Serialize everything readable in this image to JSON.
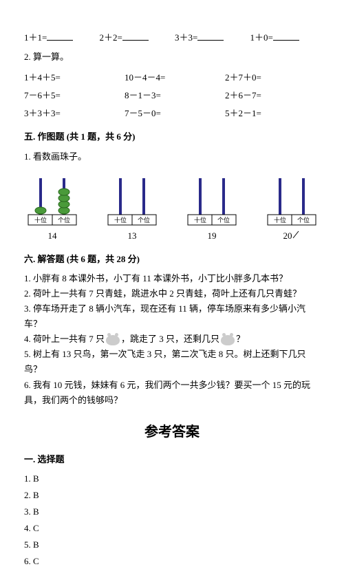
{
  "firstRow": {
    "items": [
      "1＋1=",
      "2＋2=",
      "3＋3=",
      "1＋0="
    ]
  },
  "calcHeader": "2. 算一算。",
  "calcGrid": {
    "rows": [
      [
        "1＋4＋5=",
        "10－4－4=",
        "2＋7＋0="
      ],
      [
        "7－6＋5=",
        "8－1－3=",
        "2＋6－7="
      ],
      [
        "3＋3＋3=",
        "7－5－0=",
        "5＋2－1="
      ]
    ]
  },
  "section5": "五. 作图题 (共 1 题，共 6 分)",
  "s5p1": "1. 看数画珠子。",
  "abaci": [
    {
      "number": "14",
      "tens_beads": 1,
      "ones_beads": 4,
      "tens_color": "#4a9a3a",
      "ones_color": "#4a9a3a",
      "rod_color": "#2a2a8a",
      "label_tens": "十位",
      "label_ones": "个位",
      "show_beads": true
    },
    {
      "number": "13",
      "tens_beads": 0,
      "ones_beads": 0,
      "rod_color": "#2a2a8a",
      "label_tens": "十位",
      "label_ones": "个位",
      "show_beads": false
    },
    {
      "number": "19",
      "tens_beads": 0,
      "ones_beads": 0,
      "rod_color": "#2a2a8a",
      "label_tens": "十位",
      "label_ones": "个位",
      "show_beads": false
    },
    {
      "number": "20",
      "tens_beads": 0,
      "ones_beads": 0,
      "rod_color": "#2a2a8a",
      "label_tens": "十位",
      "label_ones": "个位",
      "show_beads": false,
      "scratch": true
    }
  ],
  "section6": "六. 解答题 (共 6 题，共 28 分)",
  "wordProblems": {
    "p1": "小胖有 8 本课外书，小丁有 11 本课外书，小丁比小胖多几本书？",
    "p2": "荷叶上一共有 7 只青蛙，跳进水中 2 只青蛙，荷叶上还有几只青蛙？",
    "p3": "停车场开走了 8 辆小汽车，现在还有 11 辆，停车场原来有多少辆小汽车？",
    "p4a": "荷叶上一共有 7 只",
    "p4b": "，跳走了 3 只，还剩几只",
    "p4c": "？",
    "p5": "树上有 13 只鸟，第一次飞走 3 只，第二次飞走 8 只。树上还剩下几只鸟？",
    "p6": "我有 10 元钱，妹妹有 6 元，我们两个一共多少钱？要买一个 15 元的玩具，我们两个的钱够吗？"
  },
  "answerTitle": "参考答案",
  "answerSection1": "一. 选择题",
  "answerLines": [
    "1. B",
    "2. B",
    "3. B",
    "4. C",
    "5. B",
    "6. C"
  ]
}
